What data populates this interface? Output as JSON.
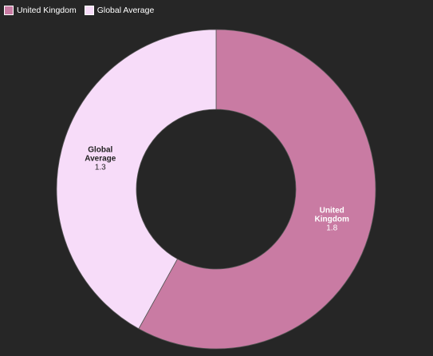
{
  "chart_data": {
    "type": "pie",
    "categories": [
      "United Kingdom",
      "Global Average"
    ],
    "values": [
      1.8,
      1.3
    ],
    "colors": [
      "#c97ba3",
      "#f7dcf9"
    ],
    "legend": "top-left"
  }
}
